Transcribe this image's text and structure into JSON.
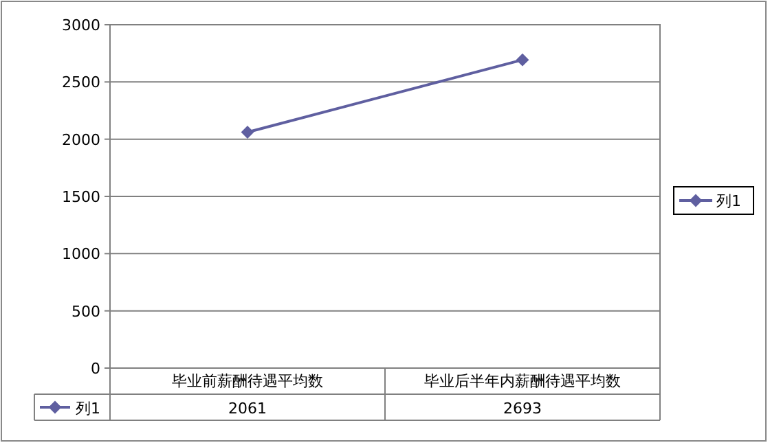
{
  "chart_data": {
    "type": "line",
    "categories": [
      "毕业前薪酬待遇平均数",
      "毕业后半年内薪酬待遇平均数"
    ],
    "series": [
      {
        "name": "列1",
        "color": "#5f5fa0",
        "values": [
          2061,
          2693
        ]
      }
    ],
    "ylim": [
      0,
      3000
    ],
    "yticks": [
      0,
      500,
      1000,
      1500,
      2000,
      2500,
      3000
    ],
    "grid": "y",
    "legend": "right",
    "marker": "diamond",
    "line_style": "solid",
    "data_labels": true
  }
}
